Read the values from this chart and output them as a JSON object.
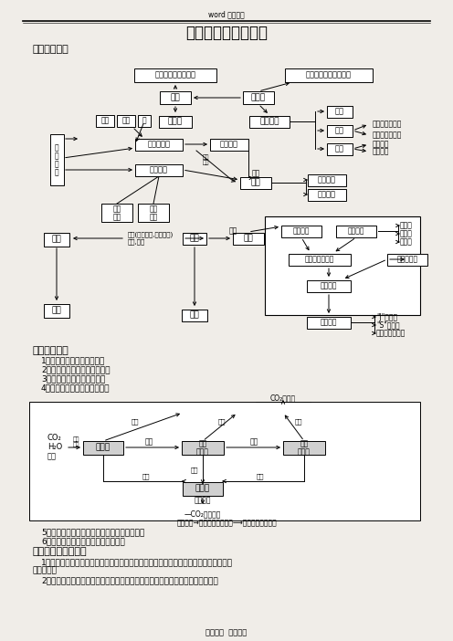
{
  "title": "生物与环境专题复习",
  "subtitle": "word 格式整理",
  "section1": "一、网络构建",
  "section2": "二、复习重点",
  "section2_items": [
    "1．生物种间关系的比较分析",
    "2．种群密度的变化与种群增长",
    "3．生态系统的三大生物成分",
    "4．能量流动和物质循环的关系"
  ],
  "section3": "三、可能出现的考点",
  "section3_items": [
    "1．生态因素的生态效应及其综合作用和主导作用的分析、判断，并联系实际问题具体分析述用．．",
    "2．种群的特征，影响种群数量变化的因素分析及种群增长在实际生产中的应用。"
  ],
  "footer": "参考资料  学习帮于",
  "bg_color": "#f0ede8"
}
